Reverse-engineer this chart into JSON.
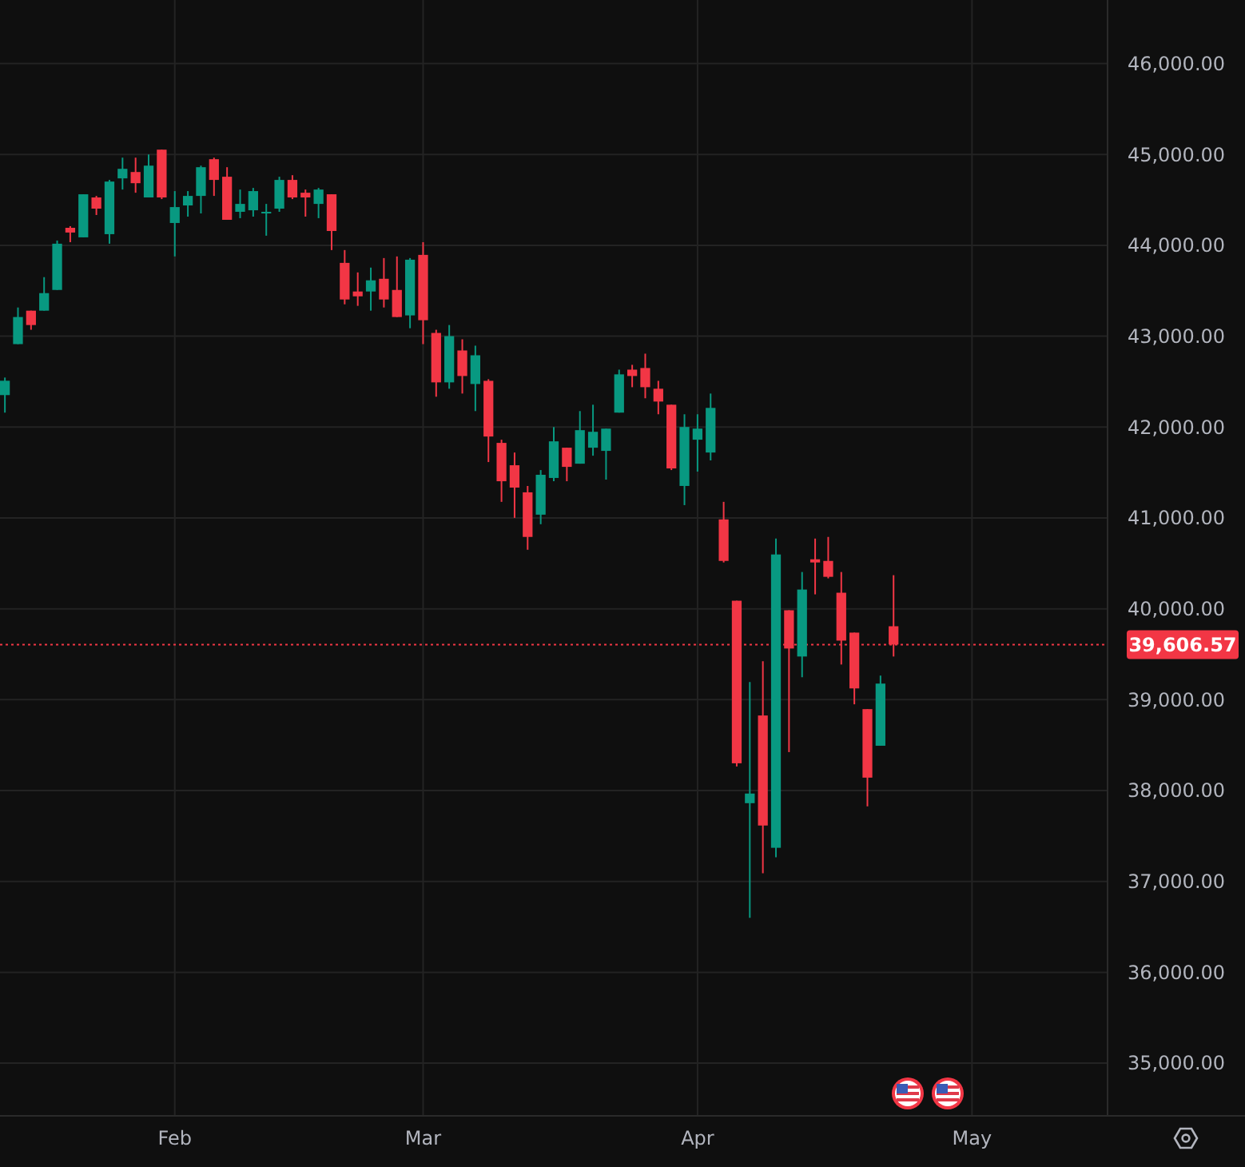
{
  "chart_data": {
    "type": "candlestick",
    "categories": [
      null,
      null,
      null,
      null,
      null,
      null,
      null,
      null,
      null,
      null,
      null,
      null,
      null,
      "Feb",
      null,
      null,
      null,
      null,
      null,
      null,
      null,
      null,
      null,
      null,
      null,
      null,
      null,
      null,
      null,
      null,
      null,
      null,
      "Mar",
      null,
      null,
      null,
      null,
      null,
      null,
      null,
      null,
      null,
      null,
      null,
      null,
      null,
      null,
      null,
      null,
      null,
      null,
      null,
      null,
      "Apr",
      null,
      null,
      null,
      null,
      null,
      null,
      null,
      null,
      null,
      null,
      null,
      null,
      null,
      null,
      null,
      null,
      null,
      null,
      null,
      null,
      "May",
      null,
      null,
      null,
      null,
      null,
      null,
      null,
      null,
      null,
      null
    ],
    "ohlc": [
      [
        42352,
        42545,
        42159,
        42510
      ],
      [
        42913,
        43316,
        42913,
        43211
      ],
      [
        43281,
        43281,
        43071,
        43123
      ],
      [
        43281,
        43650,
        43281,
        43474
      ],
      [
        43509,
        44053,
        43509,
        44018
      ],
      [
        44193,
        44211,
        44035,
        44141
      ],
      [
        44088,
        44562,
        44088,
        44562
      ],
      [
        44527,
        44544,
        44334,
        44404
      ],
      [
        44123,
        44720,
        44018,
        44702
      ],
      [
        44737,
        44965,
        44614,
        44842
      ],
      [
        44807,
        44965,
        44579,
        44684
      ],
      [
        44527,
        45000,
        44527,
        44877
      ],
      [
        45053,
        45053,
        44509,
        44527
      ],
      [
        44246,
        44597,
        43878,
        44421
      ],
      [
        44439,
        44597,
        44316,
        44544
      ],
      [
        44544,
        44877,
        44351,
        44860
      ],
      [
        44948,
        44965,
        44544,
        44720
      ],
      [
        44755,
        44860,
        44281,
        44281
      ],
      [
        44369,
        44614,
        44299,
        44456
      ],
      [
        44386,
        44632,
        44316,
        44597
      ],
      [
        44351,
        44456,
        44106,
        44369
      ],
      [
        44404,
        44755,
        44369,
        44720
      ],
      [
        44720,
        44772,
        44509,
        44527
      ],
      [
        44579,
        44614,
        44316,
        44527
      ],
      [
        44456,
        44632,
        44299,
        44614
      ],
      [
        44562,
        44562,
        43948,
        44158
      ],
      [
        43807,
        43948,
        43351,
        43404
      ],
      [
        43492,
        43702,
        43334,
        43439
      ],
      [
        43492,
        43755,
        43281,
        43615
      ],
      [
        43632,
        43860,
        43316,
        43404
      ],
      [
        43509,
        43878,
        43211,
        43211
      ],
      [
        43229,
        43860,
        43088,
        43842
      ],
      [
        43895,
        44035,
        42913,
        43176
      ],
      [
        43036,
        43071,
        42334,
        42492
      ],
      [
        42492,
        43123,
        42422,
        43001
      ],
      [
        42843,
        42966,
        42369,
        42562
      ],
      [
        42474,
        42896,
        42176,
        42790
      ],
      [
        42509,
        42527,
        41615,
        41896
      ],
      [
        41826,
        41861,
        41177,
        41404
      ],
      [
        41580,
        41720,
        41001,
        41334
      ],
      [
        41282,
        41352,
        40650,
        40791
      ],
      [
        41036,
        41527,
        40931,
        41475
      ],
      [
        41440,
        42001,
        41404,
        41843
      ],
      [
        41773,
        41773,
        41404,
        41562
      ],
      [
        41597,
        42176,
        41597,
        41966
      ],
      [
        41773,
        42246,
        41685,
        41948
      ],
      [
        41738,
        41983,
        41422,
        41983
      ],
      [
        42159,
        42632,
        42159,
        42580
      ],
      [
        42632,
        42685,
        42439,
        42562
      ],
      [
        42650,
        42808,
        42317,
        42439
      ],
      [
        42422,
        42509,
        42141,
        42281
      ],
      [
        42246,
        42246,
        41527,
        41545
      ],
      [
        41352,
        42141,
        41141,
        42001
      ],
      [
        41861,
        42141,
        41510,
        41983
      ],
      [
        41720,
        42369,
        41633,
        42211
      ],
      [
        40984,
        41177,
        40510,
        40527
      ],
      [
        40089,
        40089,
        38265,
        38300
      ],
      [
        37861,
        39195,
        36599,
        37967
      ],
      [
        38826,
        39423,
        37089,
        37615
      ],
      [
        37370,
        40773,
        37265,
        40598
      ],
      [
        39984,
        39984,
        38423,
        39563
      ],
      [
        39475,
        40405,
        39247,
        40212
      ],
      [
        40545,
        40773,
        40159,
        40510
      ],
      [
        40527,
        40791,
        40335,
        40352
      ],
      [
        40177,
        40405,
        39387,
        39650
      ],
      [
        39738,
        39738,
        38949,
        39124
      ],
      [
        38896,
        38896,
        37826,
        38142
      ],
      [
        38493,
        39265,
        38493,
        39177
      ],
      [
        39808,
        40370,
        39475,
        39607
      ],
      null,
      null,
      null,
      null,
      null,
      null,
      null,
      null,
      null,
      null,
      null,
      null,
      null,
      null,
      null,
      null
    ],
    "colors": [
      "#089981",
      "#089981",
      "#f23645",
      "#089981",
      "#089981",
      "#f23645",
      "#089981",
      "#f23645",
      "#089981",
      "#089981",
      "#f23645",
      "#089981",
      "#f23645",
      "#089981",
      "#089981",
      "#089981",
      "#f23645",
      "#f23645",
      "#089981",
      "#089981",
      "#089981",
      "#089981",
      "#f23645",
      "#f23645",
      "#089981",
      "#f23645",
      "#f23645",
      "#f23645",
      "#089981",
      "#f23645",
      "#f23645",
      "#089981",
      "#f23645",
      "#f23645",
      "#089981",
      "#f23645",
      "#089981",
      "#f23645",
      "#f23645",
      "#f23645",
      "#f23645",
      "#089981",
      "#089981",
      "#f23645",
      "#089981",
      "#089981",
      "#089981",
      "#089981",
      "#f23645",
      "#f23645",
      "#f23645",
      "#f23645",
      "#089981",
      "#089981",
      "#089981",
      "#f23645",
      "#f23645",
      "#089981",
      "#f23645",
      "#089981",
      "#f23645",
      "#089981",
      "#f23645",
      "#f23645",
      "#f23645",
      "#f23645",
      "#f23645",
      "#089981",
      "#f23645",
      null,
      null,
      null,
      null,
      null,
      null,
      null,
      null,
      null,
      null,
      null,
      null,
      null,
      null,
      null,
      null
    ],
    "ylim": [
      34420,
      46700
    ],
    "yticks": [
      {
        "value": 35000,
        "label": "35,000.00"
      },
      {
        "value": 36000,
        "label": "36,000.00"
      },
      {
        "value": 37000,
        "label": "37,000.00"
      },
      {
        "value": 38000,
        "label": "38,000.00"
      },
      {
        "value": 39000,
        "label": "39,000.00"
      },
      {
        "value": 40000,
        "label": "40,000.00"
      },
      {
        "value": 41000,
        "label": "41,000.00"
      },
      {
        "value": 42000,
        "label": "42,000.00"
      },
      {
        "value": 43000,
        "label": "43,000.00"
      },
      {
        "value": 44000,
        "label": "44,000.00"
      },
      {
        "value": 45000,
        "label": "45,000.00"
      },
      {
        "value": 46000,
        "label": "46,000.00"
      }
    ],
    "ref_lines": [
      {
        "axis": "y",
        "value": 39606.57,
        "label": "39,606.57",
        "color": "#f23645",
        "line_style": "dotted"
      }
    ],
    "grid": true
  }
}
